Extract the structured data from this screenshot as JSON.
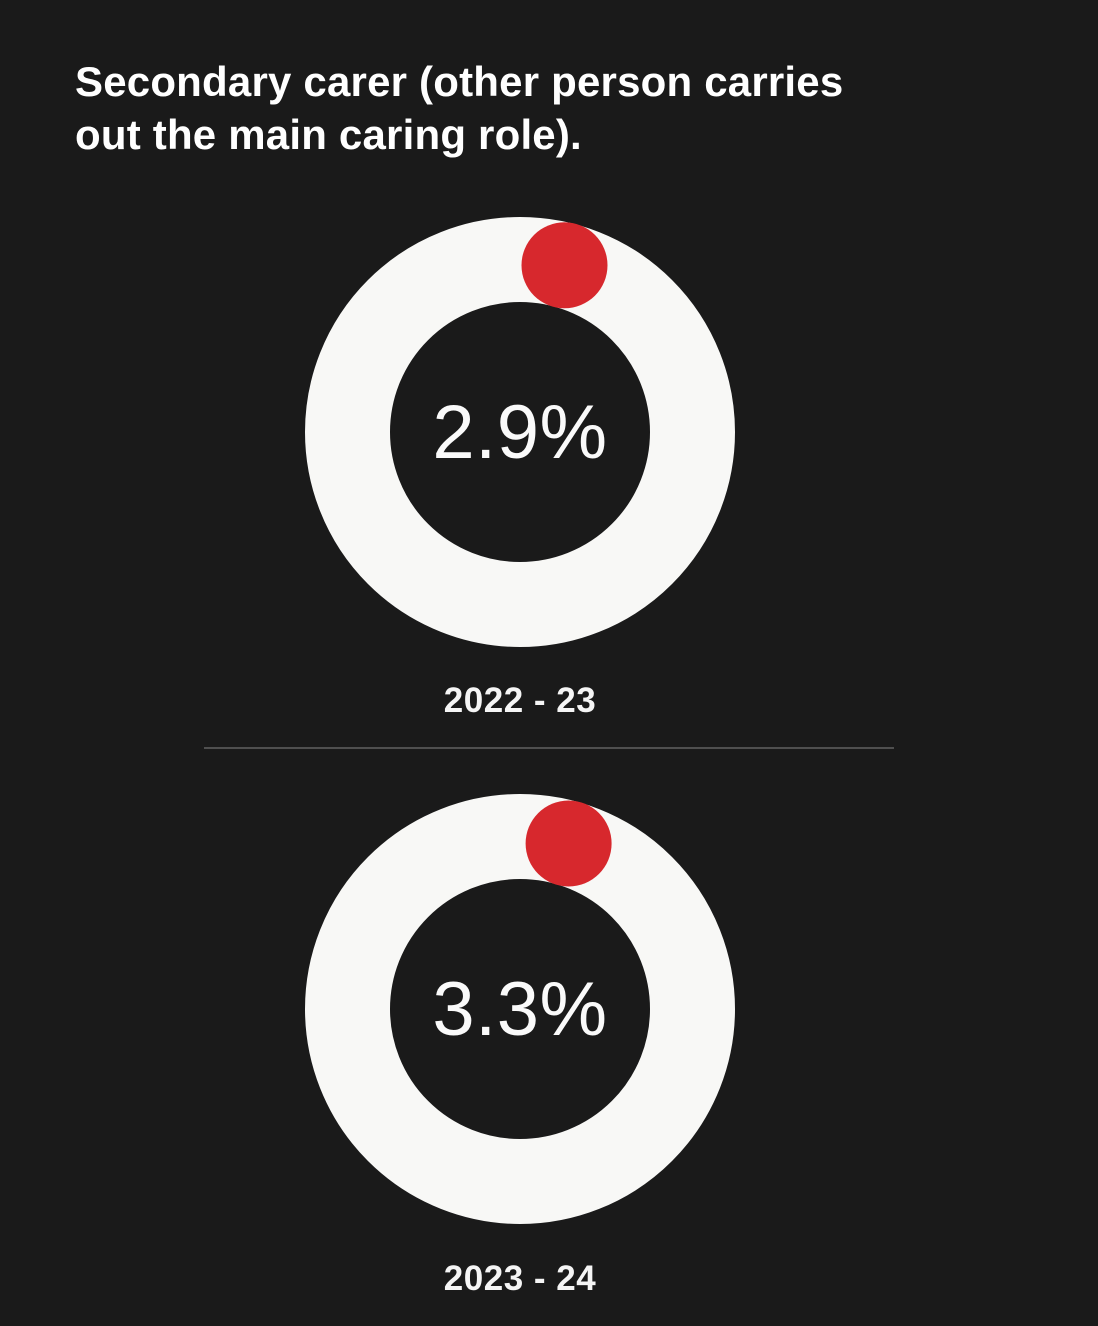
{
  "page": {
    "background_color": "#1a1a1a",
    "text_color": "#ffffff"
  },
  "title": {
    "text": "Secondary carer (other person carries out the main caring role).",
    "lines": [
      "Secondary carer (other person carries",
      "out the main caring role)."
    ]
  },
  "colors": {
    "background": "#1a1a1a",
    "ring": "#f8f8f6",
    "accent_red": "#d7282d",
    "divider": "#4f4f4f",
    "text": "#ffffff"
  },
  "chart_data": [
    {
      "type": "donut",
      "title": "2022 - 23",
      "value_pct": 2.9,
      "value_label": "2.9%",
      "period_label": "2022 - 23",
      "ring_color": "#f8f8f6",
      "marker_color": "#d7282d",
      "hole_color": "#1a1a1a"
    },
    {
      "type": "donut",
      "title": "2023 - 24",
      "value_pct": 3.3,
      "value_label": "3.3%",
      "period_label": "2023 - 24",
      "ring_color": "#f8f8f6",
      "marker_color": "#d7282d",
      "hole_color": "#1a1a1a"
    }
  ]
}
